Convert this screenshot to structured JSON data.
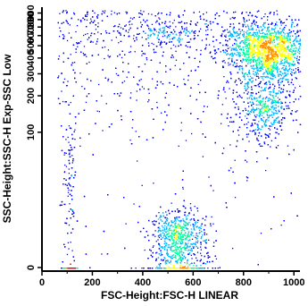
{
  "chart_data": {
    "type": "scatter",
    "subtype": "density-dot-plot",
    "title": "",
    "xlabel": "FSC-Height:FSC-H LINEAR",
    "ylabel": "SSC-Height:SSC-H Exp-SSC Low",
    "xlim": [
      0,
      1024
    ],
    "ylim": [
      0,
      1000
    ],
    "x_ticks": [
      "0",
      "200",
      "400",
      "600",
      "800",
      "1000"
    ],
    "y_ticks": [
      {
        "value": 0,
        "label": "0"
      },
      {
        "value": 100,
        "label": "100"
      },
      {
        "value": 200,
        "label": "200"
      },
      {
        "value": 300,
        "label": "300"
      },
      {
        "value": 400,
        "label": "400"
      },
      {
        "value": 500,
        "label": "500"
      },
      {
        "value": 600,
        "label": "600"
      },
      {
        "value": 700,
        "label": "700"
      },
      {
        "value": 800,
        "label": "800"
      },
      {
        "value": 900,
        "label": "900"
      }
    ],
    "y_scale": "nonlinear-compressed",
    "grid": false,
    "density_colors": [
      "#0000ff",
      "#00b4ff",
      "#00ff9c",
      "#ffff00",
      "#ff9000",
      "#ff0000"
    ],
    "populations": [
      {
        "x_center": 540,
        "y_center": 5,
        "x_spread": 60,
        "y_spread": 6,
        "weight": 0.22
      },
      {
        "x_center": 890,
        "y_center": 450,
        "x_spread": 80,
        "y_spread": 130,
        "weight": 0.4
      },
      {
        "x_center": 880,
        "y_center": 150,
        "x_spread": 50,
        "y_spread": 40,
        "weight": 0.09
      },
      {
        "x_center": 110,
        "y_center": 10,
        "x_spread": 15,
        "y_spread": 50,
        "weight": 0.05
      },
      {
        "x_center": 500,
        "y_center": 620,
        "x_spread": 80,
        "y_spread": 60,
        "weight": 0.04
      }
    ]
  }
}
